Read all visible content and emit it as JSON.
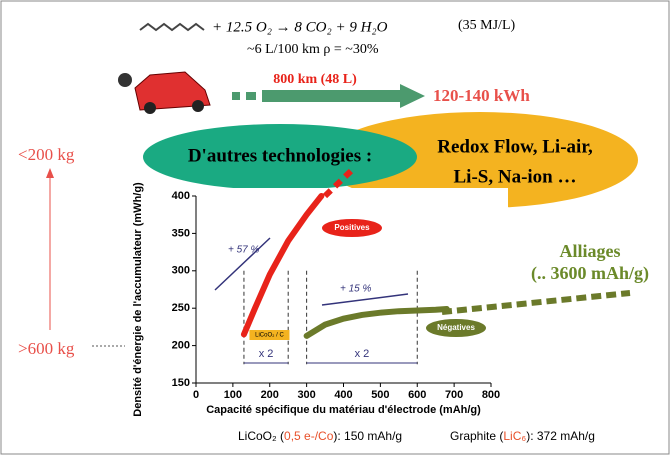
{
  "slide": {
    "formula": "+ 12.5 O₂ → 8 CO₂ + 9 H₂O",
    "energy_density": "(35 MJ/L)",
    "consumption": "~6 L/100 km  ρ = ~30%",
    "range": "800 km (48 L)",
    "energy": "120-140 kWh",
    "mass_low": "<200 kg",
    "mass_high": ">600 kg",
    "other_tech": "D'autres technologies :",
    "tech_line1": "Redox Flow, Li-air,",
    "tech_line2": "Li-S, Na-ion …",
    "alloys": "Alliages",
    "alloys_capacity": "(.. 3600 mAh/g)",
    "footer_licoo2": [
      "LiCoO₂ (",
      "0,5 e-/Co",
      "): 150 mAh/g"
    ],
    "footer_graphite": [
      "Graphite (",
      "LiC₆",
      "): 372 mAh/g"
    ]
  },
  "chart_data": {
    "type": "line",
    "xlabel": "Capacité spécifique du matériau d'électrode (mAh/g)",
    "ylabel": "Densité d'énergie de l'accumulateur (mWh/g)",
    "xlim": [
      0,
      800
    ],
    "ylim": [
      150,
      400
    ],
    "xticks": [
      0,
      100,
      200,
      300,
      400,
      500,
      600,
      700,
      800
    ],
    "yticks": [
      150,
      200,
      250,
      300,
      350,
      400
    ],
    "ref_lines": [
      130,
      250,
      300,
      600
    ],
    "annotations": [
      "+ 57 %",
      "+ 15 %",
      "x 2",
      "x 2",
      "LiCoO₂ / C"
    ],
    "series": [
      {
        "name": "Positives",
        "color": "#e8231a",
        "x": [
          130,
          160,
          200,
          250,
          300,
          340
        ],
        "values": [
          215,
          250,
          295,
          340,
          375,
          400
        ]
      },
      {
        "name": "Négatives",
        "color": "#6b7a2a",
        "x": [
          300,
          350,
          400,
          450,
          500,
          550,
          600,
          650,
          680
        ],
        "values": [
          213,
          228,
          236,
          241,
          244,
          246,
          247,
          248,
          249
        ]
      }
    ]
  }
}
